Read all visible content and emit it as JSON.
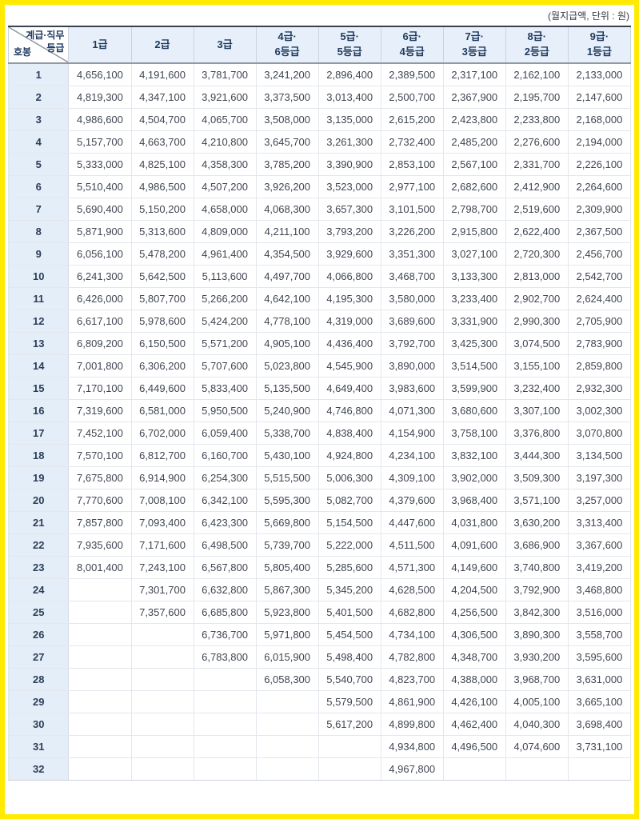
{
  "note": "(월지급액, 단위 : 원)",
  "colors": {
    "frame_border": "#ffea00",
    "header_bg": "#e7f0fa",
    "row_label_bg": "#e4eef9",
    "header_text": "#1f3a5f",
    "number_text": "#3f4552",
    "table_top_border": "#39414e",
    "header_bottom_border": "#9199a3"
  },
  "table": {
    "corner": {
      "top_line1": "계급·직무",
      "top_line2": "등급",
      "bottom": "호봉"
    },
    "columns": [
      {
        "line1": "1급",
        "line2": ""
      },
      {
        "line1": "2급",
        "line2": ""
      },
      {
        "line1": "3급",
        "line2": ""
      },
      {
        "line1": "4급·",
        "line2": "6등급"
      },
      {
        "line1": "5급·",
        "line2": "5등급"
      },
      {
        "line1": "6급·",
        "line2": "4등급"
      },
      {
        "line1": "7급·",
        "line2": "3등급"
      },
      {
        "line1": "8급·",
        "line2": "2등급"
      },
      {
        "line1": "9급·",
        "line2": "1등급"
      }
    ],
    "rows": [
      {
        "label": "1",
        "values": [
          "4,656,100",
          "4,191,600",
          "3,781,700",
          "3,241,200",
          "2,896,400",
          "2,389,500",
          "2,317,100",
          "2,162,100",
          "2,133,000"
        ]
      },
      {
        "label": "2",
        "values": [
          "4,819,300",
          "4,347,100",
          "3,921,600",
          "3,373,500",
          "3,013,400",
          "2,500,700",
          "2,367,900",
          "2,195,700",
          "2,147,600"
        ]
      },
      {
        "label": "3",
        "values": [
          "4,986,600",
          "4,504,700",
          "4,065,700",
          "3,508,000",
          "3,135,000",
          "2,615,200",
          "2,423,800",
          "2,233,800",
          "2,168,000"
        ]
      },
      {
        "label": "4",
        "values": [
          "5,157,700",
          "4,663,700",
          "4,210,800",
          "3,645,700",
          "3,261,300",
          "2,732,400",
          "2,485,200",
          "2,276,600",
          "2,194,000"
        ]
      },
      {
        "label": "5",
        "values": [
          "5,333,000",
          "4,825,100",
          "4,358,300",
          "3,785,200",
          "3,390,900",
          "2,853,100",
          "2,567,100",
          "2,331,700",
          "2,226,100"
        ]
      },
      {
        "label": "6",
        "values": [
          "5,510,400",
          "4,986,500",
          "4,507,200",
          "3,926,200",
          "3,523,000",
          "2,977,100",
          "2,682,600",
          "2,412,900",
          "2,264,600"
        ]
      },
      {
        "label": "7",
        "values": [
          "5,690,400",
          "5,150,200",
          "4,658,000",
          "4,068,300",
          "3,657,300",
          "3,101,500",
          "2,798,700",
          "2,519,600",
          "2,309,900"
        ]
      },
      {
        "label": "8",
        "values": [
          "5,871,900",
          "5,313,600",
          "4,809,000",
          "4,211,100",
          "3,793,200",
          "3,226,200",
          "2,915,800",
          "2,622,400",
          "2,367,500"
        ]
      },
      {
        "label": "9",
        "values": [
          "6,056,100",
          "5,478,200",
          "4,961,400",
          "4,354,500",
          "3,929,600",
          "3,351,300",
          "3,027,100",
          "2,720,300",
          "2,456,700"
        ]
      },
      {
        "label": "10",
        "values": [
          "6,241,300",
          "5,642,500",
          "5,113,600",
          "4,497,700",
          "4,066,800",
          "3,468,700",
          "3,133,300",
          "2,813,000",
          "2,542,700"
        ]
      },
      {
        "label": "11",
        "values": [
          "6,426,000",
          "5,807,700",
          "5,266,200",
          "4,642,100",
          "4,195,300",
          "3,580,000",
          "3,233,400",
          "2,902,700",
          "2,624,400"
        ]
      },
      {
        "label": "12",
        "values": [
          "6,617,100",
          "5,978,600",
          "5,424,200",
          "4,778,100",
          "4,319,000",
          "3,689,600",
          "3,331,900",
          "2,990,300",
          "2,705,900"
        ]
      },
      {
        "label": "13",
        "values": [
          "6,809,200",
          "6,150,500",
          "5,571,200",
          "4,905,100",
          "4,436,400",
          "3,792,700",
          "3,425,300",
          "3,074,500",
          "2,783,900"
        ]
      },
      {
        "label": "14",
        "values": [
          "7,001,800",
          "6,306,200",
          "5,707,600",
          "5,023,800",
          "4,545,900",
          "3,890,000",
          "3,514,500",
          "3,155,100",
          "2,859,800"
        ]
      },
      {
        "label": "15",
        "values": [
          "7,170,100",
          "6,449,600",
          "5,833,400",
          "5,135,500",
          "4,649,400",
          "3,983,600",
          "3,599,900",
          "3,232,400",
          "2,932,300"
        ]
      },
      {
        "label": "16",
        "values": [
          "7,319,600",
          "6,581,000",
          "5,950,500",
          "5,240,900",
          "4,746,800",
          "4,071,300",
          "3,680,600",
          "3,307,100",
          "3,002,300"
        ]
      },
      {
        "label": "17",
        "values": [
          "7,452,100",
          "6,702,000",
          "6,059,400",
          "5,338,700",
          "4,838,400",
          "4,154,900",
          "3,758,100",
          "3,376,800",
          "3,070,800"
        ]
      },
      {
        "label": "18",
        "values": [
          "7,570,100",
          "6,812,700",
          "6,160,700",
          "5,430,100",
          "4,924,800",
          "4,234,100",
          "3,832,100",
          "3,444,300",
          "3,134,500"
        ]
      },
      {
        "label": "19",
        "values": [
          "7,675,800",
          "6,914,900",
          "6,254,300",
          "5,515,500",
          "5,006,300",
          "4,309,100",
          "3,902,000",
          "3,509,300",
          "3,197,300"
        ]
      },
      {
        "label": "20",
        "values": [
          "7,770,600",
          "7,008,100",
          "6,342,100",
          "5,595,300",
          "5,082,700",
          "4,379,600",
          "3,968,400",
          "3,571,100",
          "3,257,000"
        ]
      },
      {
        "label": "21",
        "values": [
          "7,857,800",
          "7,093,400",
          "6,423,300",
          "5,669,800",
          "5,154,500",
          "4,447,600",
          "4,031,800",
          "3,630,200",
          "3,313,400"
        ]
      },
      {
        "label": "22",
        "values": [
          "7,935,600",
          "7,171,600",
          "6,498,500",
          "5,739,700",
          "5,222,000",
          "4,511,500",
          "4,091,600",
          "3,686,900",
          "3,367,600"
        ]
      },
      {
        "label": "23",
        "values": [
          "8,001,400",
          "7,243,100",
          "6,567,800",
          "5,805,400",
          "5,285,600",
          "4,571,300",
          "4,149,600",
          "3,740,800",
          "3,419,200"
        ]
      },
      {
        "label": "24",
        "values": [
          "",
          "7,301,700",
          "6,632,800",
          "5,867,300",
          "5,345,200",
          "4,628,500",
          "4,204,500",
          "3,792,900",
          "3,468,800"
        ]
      },
      {
        "label": "25",
        "values": [
          "",
          "7,357,600",
          "6,685,800",
          "5,923,800",
          "5,401,500",
          "4,682,800",
          "4,256,500",
          "3,842,300",
          "3,516,000"
        ]
      },
      {
        "label": "26",
        "values": [
          "",
          "",
          "6,736,700",
          "5,971,800",
          "5,454,500",
          "4,734,100",
          "4,306,500",
          "3,890,300",
          "3,558,700"
        ]
      },
      {
        "label": "27",
        "values": [
          "",
          "",
          "6,783,800",
          "6,015,900",
          "5,498,400",
          "4,782,800",
          "4,348,700",
          "3,930,200",
          "3,595,600"
        ]
      },
      {
        "label": "28",
        "values": [
          "",
          "",
          "",
          "6,058,300",
          "5,540,700",
          "4,823,700",
          "4,388,000",
          "3,968,700",
          "3,631,000"
        ]
      },
      {
        "label": "29",
        "values": [
          "",
          "",
          "",
          "",
          "5,579,500",
          "4,861,900",
          "4,426,100",
          "4,005,100",
          "3,665,100"
        ]
      },
      {
        "label": "30",
        "values": [
          "",
          "",
          "",
          "",
          "5,617,200",
          "4,899,800",
          "4,462,400",
          "4,040,300",
          "3,698,400"
        ]
      },
      {
        "label": "31",
        "values": [
          "",
          "",
          "",
          "",
          "",
          "4,934,800",
          "4,496,500",
          "4,074,600",
          "3,731,100"
        ]
      },
      {
        "label": "32",
        "values": [
          "",
          "",
          "",
          "",
          "",
          "4,967,800",
          "",
          "",
          ""
        ]
      }
    ]
  }
}
